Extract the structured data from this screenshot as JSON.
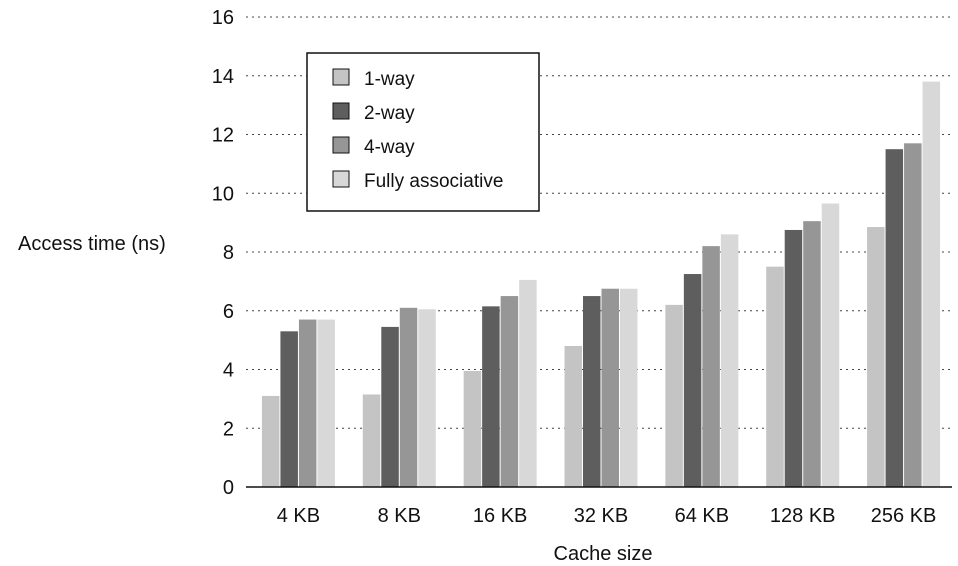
{
  "chart_data": {
    "type": "bar",
    "xlabel": "Cache size",
    "ylabel": "Access time (ns)",
    "ylim": [
      0,
      16
    ],
    "yticks": [
      0,
      2,
      4,
      6,
      8,
      10,
      12,
      14,
      16
    ],
    "grid": "horizontal dotted",
    "legend_position": "top-left",
    "categories": [
      "4 KB",
      "8 KB",
      "16 KB",
      "32 KB",
      "64 KB",
      "128 KB",
      "256 KB"
    ],
    "series": [
      {
        "name": "1-way",
        "color": "#c4c4c4",
        "values": [
          3.1,
          3.15,
          3.95,
          4.8,
          6.2,
          7.5,
          8.85
        ]
      },
      {
        "name": "2-way",
        "color": "#5e5e5e",
        "values": [
          5.3,
          5.45,
          6.15,
          6.5,
          7.25,
          8.75,
          11.5
        ]
      },
      {
        "name": "4-way",
        "color": "#969696",
        "values": [
          5.7,
          6.1,
          6.5,
          6.75,
          8.2,
          9.05,
          11.7
        ]
      },
      {
        "name": "Fully associative",
        "color": "#d8d8d8",
        "values": [
          5.7,
          6.05,
          7.05,
          6.75,
          8.6,
          9.65,
          13.8
        ]
      }
    ]
  }
}
